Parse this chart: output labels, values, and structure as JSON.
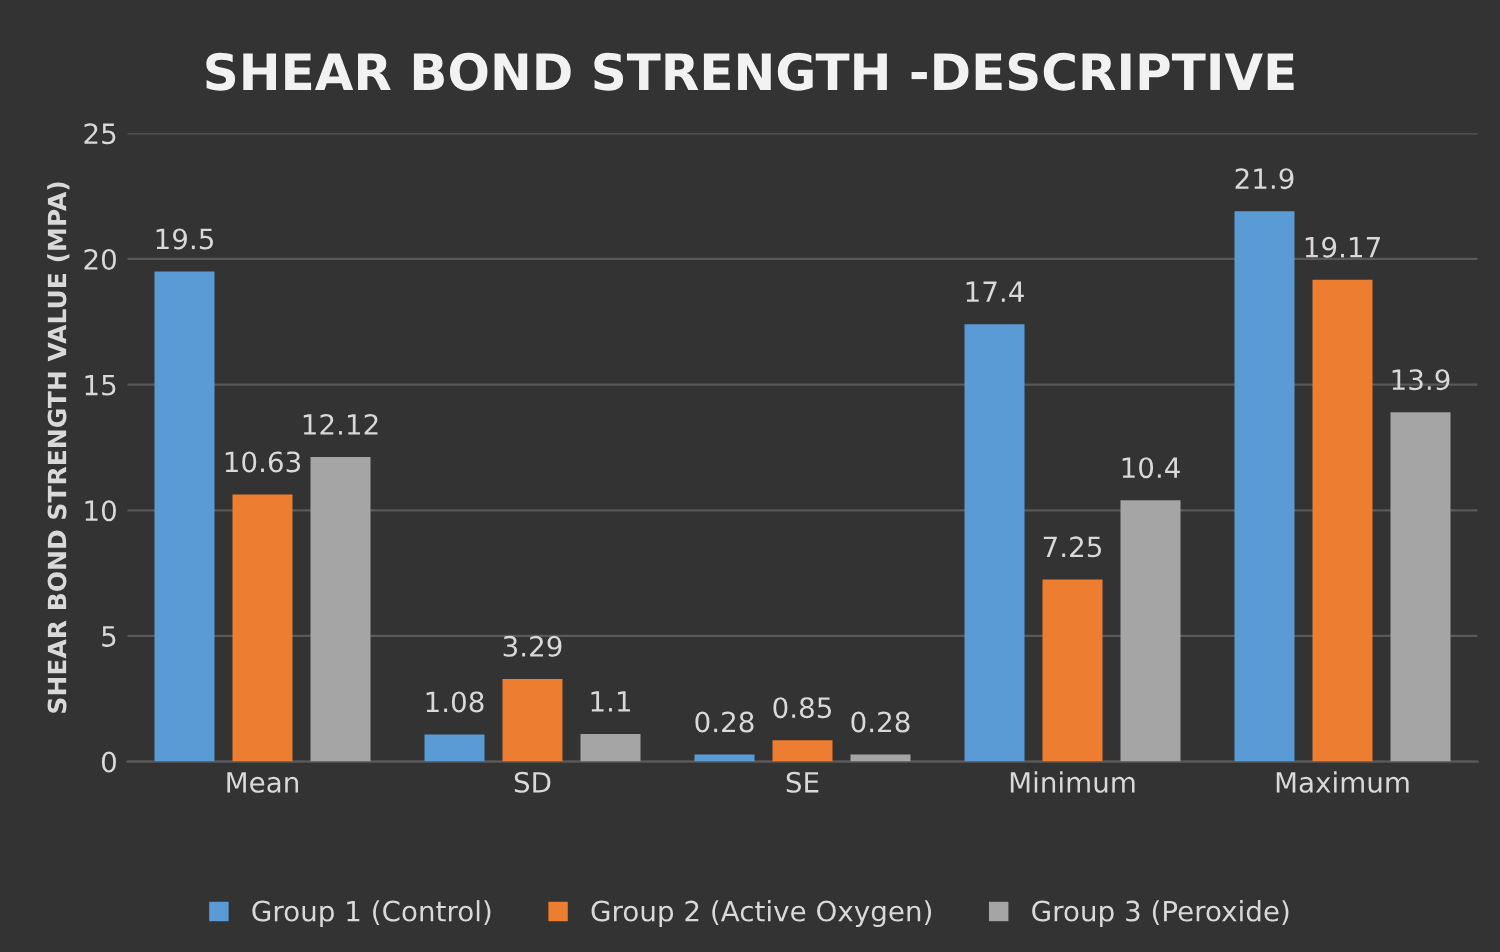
{
  "chart_data": {
    "type": "bar",
    "title": "SHEAR BOND STRENGTH -DESCRIPTIVE",
    "ylabel": "SHEAR BOND STRENGTH VALUE (MPA)",
    "categories": [
      "Mean",
      "SD",
      "SE",
      "Minimum",
      "Maximum"
    ],
    "series": [
      {
        "name": "Group 1 (Control)",
        "color": "#5b9bd5",
        "values": [
          19.5,
          1.08,
          0.28,
          17.4,
          21.9
        ]
      },
      {
        "name": "Group 2 (Active Oxygen)",
        "color": "#ed7d31",
        "values": [
          10.63,
          3.29,
          0.85,
          7.25,
          19.17
        ]
      },
      {
        "name": "Group 3 (Peroxide)",
        "color": "#a5a5a5",
        "values": [
          12.12,
          1.1,
          0.28,
          10.4,
          13.9
        ]
      }
    ],
    "ylim": [
      0,
      25
    ],
    "yticks": [
      0,
      5,
      10,
      15,
      20,
      25
    ],
    "grid": "y",
    "legend": "bottom",
    "data_labels": true
  }
}
